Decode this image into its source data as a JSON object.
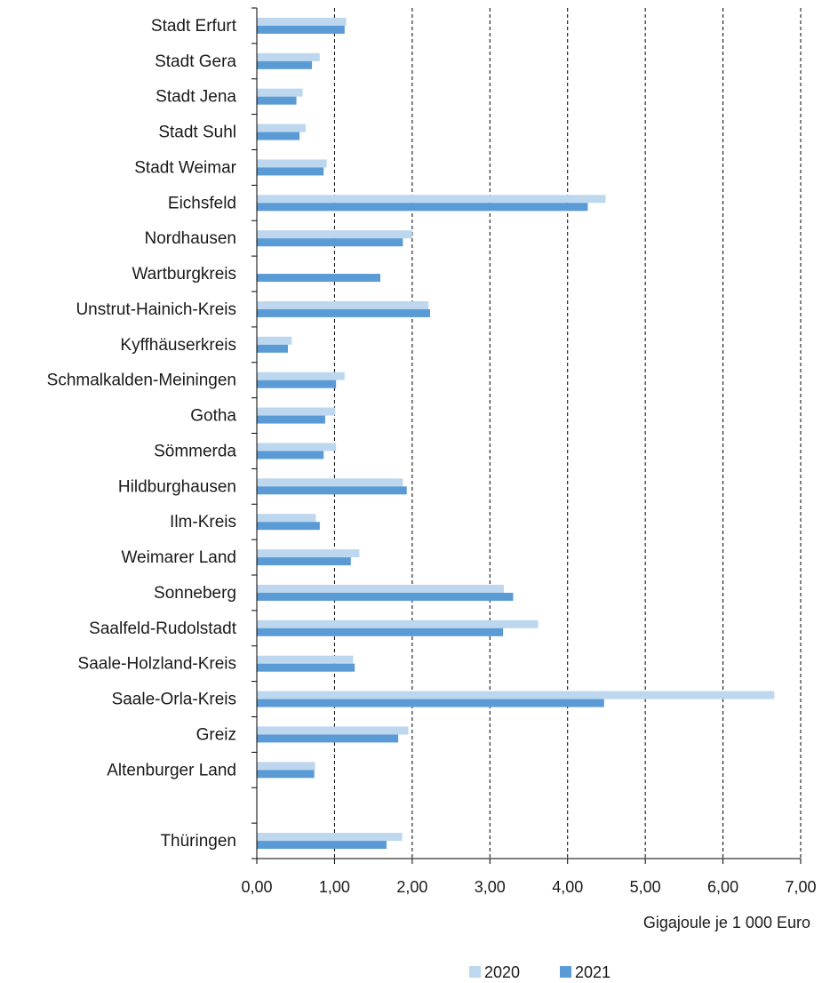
{
  "chart_data": {
    "type": "bar",
    "orientation": "horizontal",
    "categories": [
      "Stadt Erfurt",
      "Stadt Gera",
      "Stadt Jena",
      "Stadt Suhl",
      "Stadt Weimar",
      "Eichsfeld",
      "Nordhausen",
      "Wartburgkreis",
      "Unstrut-Hainich-Kreis",
      "Kyffhäuserkreis",
      "Schmalkalden-Meiningen",
      "Gotha",
      "Sömmerda",
      "Hildburghausen",
      "Ilm-Kreis",
      "Weimarer Land",
      "Sonneberg",
      "Saalfeld-Rudolstadt",
      "Saale-Holzland-Kreis",
      "Saale-Orla-Kreis",
      "Greiz",
      "Altenburger Land",
      "",
      "Thüringen"
    ],
    "series": [
      {
        "name": "2020",
        "color": "#bdd7ee",
        "values": [
          1.15,
          0.81,
          0.59,
          0.63,
          0.9,
          4.49,
          2.0,
          null,
          2.21,
          0.45,
          1.13,
          1.01,
          1.02,
          1.88,
          0.76,
          1.32,
          3.18,
          3.62,
          1.24,
          6.66,
          1.95,
          0.75,
          null,
          1.87
        ]
      },
      {
        "name": "2021",
        "color": "#5b9bd5",
        "values": [
          1.13,
          0.71,
          0.51,
          0.55,
          0.86,
          4.26,
          1.88,
          1.59,
          2.23,
          0.4,
          1.02,
          0.88,
          0.86,
          1.93,
          0.81,
          1.21,
          3.3,
          3.17,
          1.26,
          4.47,
          1.82,
          0.74,
          null,
          1.67
        ]
      }
    ],
    "xlim": [
      0,
      7
    ],
    "x_ticks": [
      "0,00",
      "1,00",
      "2,00",
      "3,00",
      "4,00",
      "5,00",
      "6,00",
      "7,00"
    ],
    "xlabel": "Gigajoule je 1 000 Euro",
    "grid": "vertical dashed",
    "legend_position": "bottom"
  }
}
